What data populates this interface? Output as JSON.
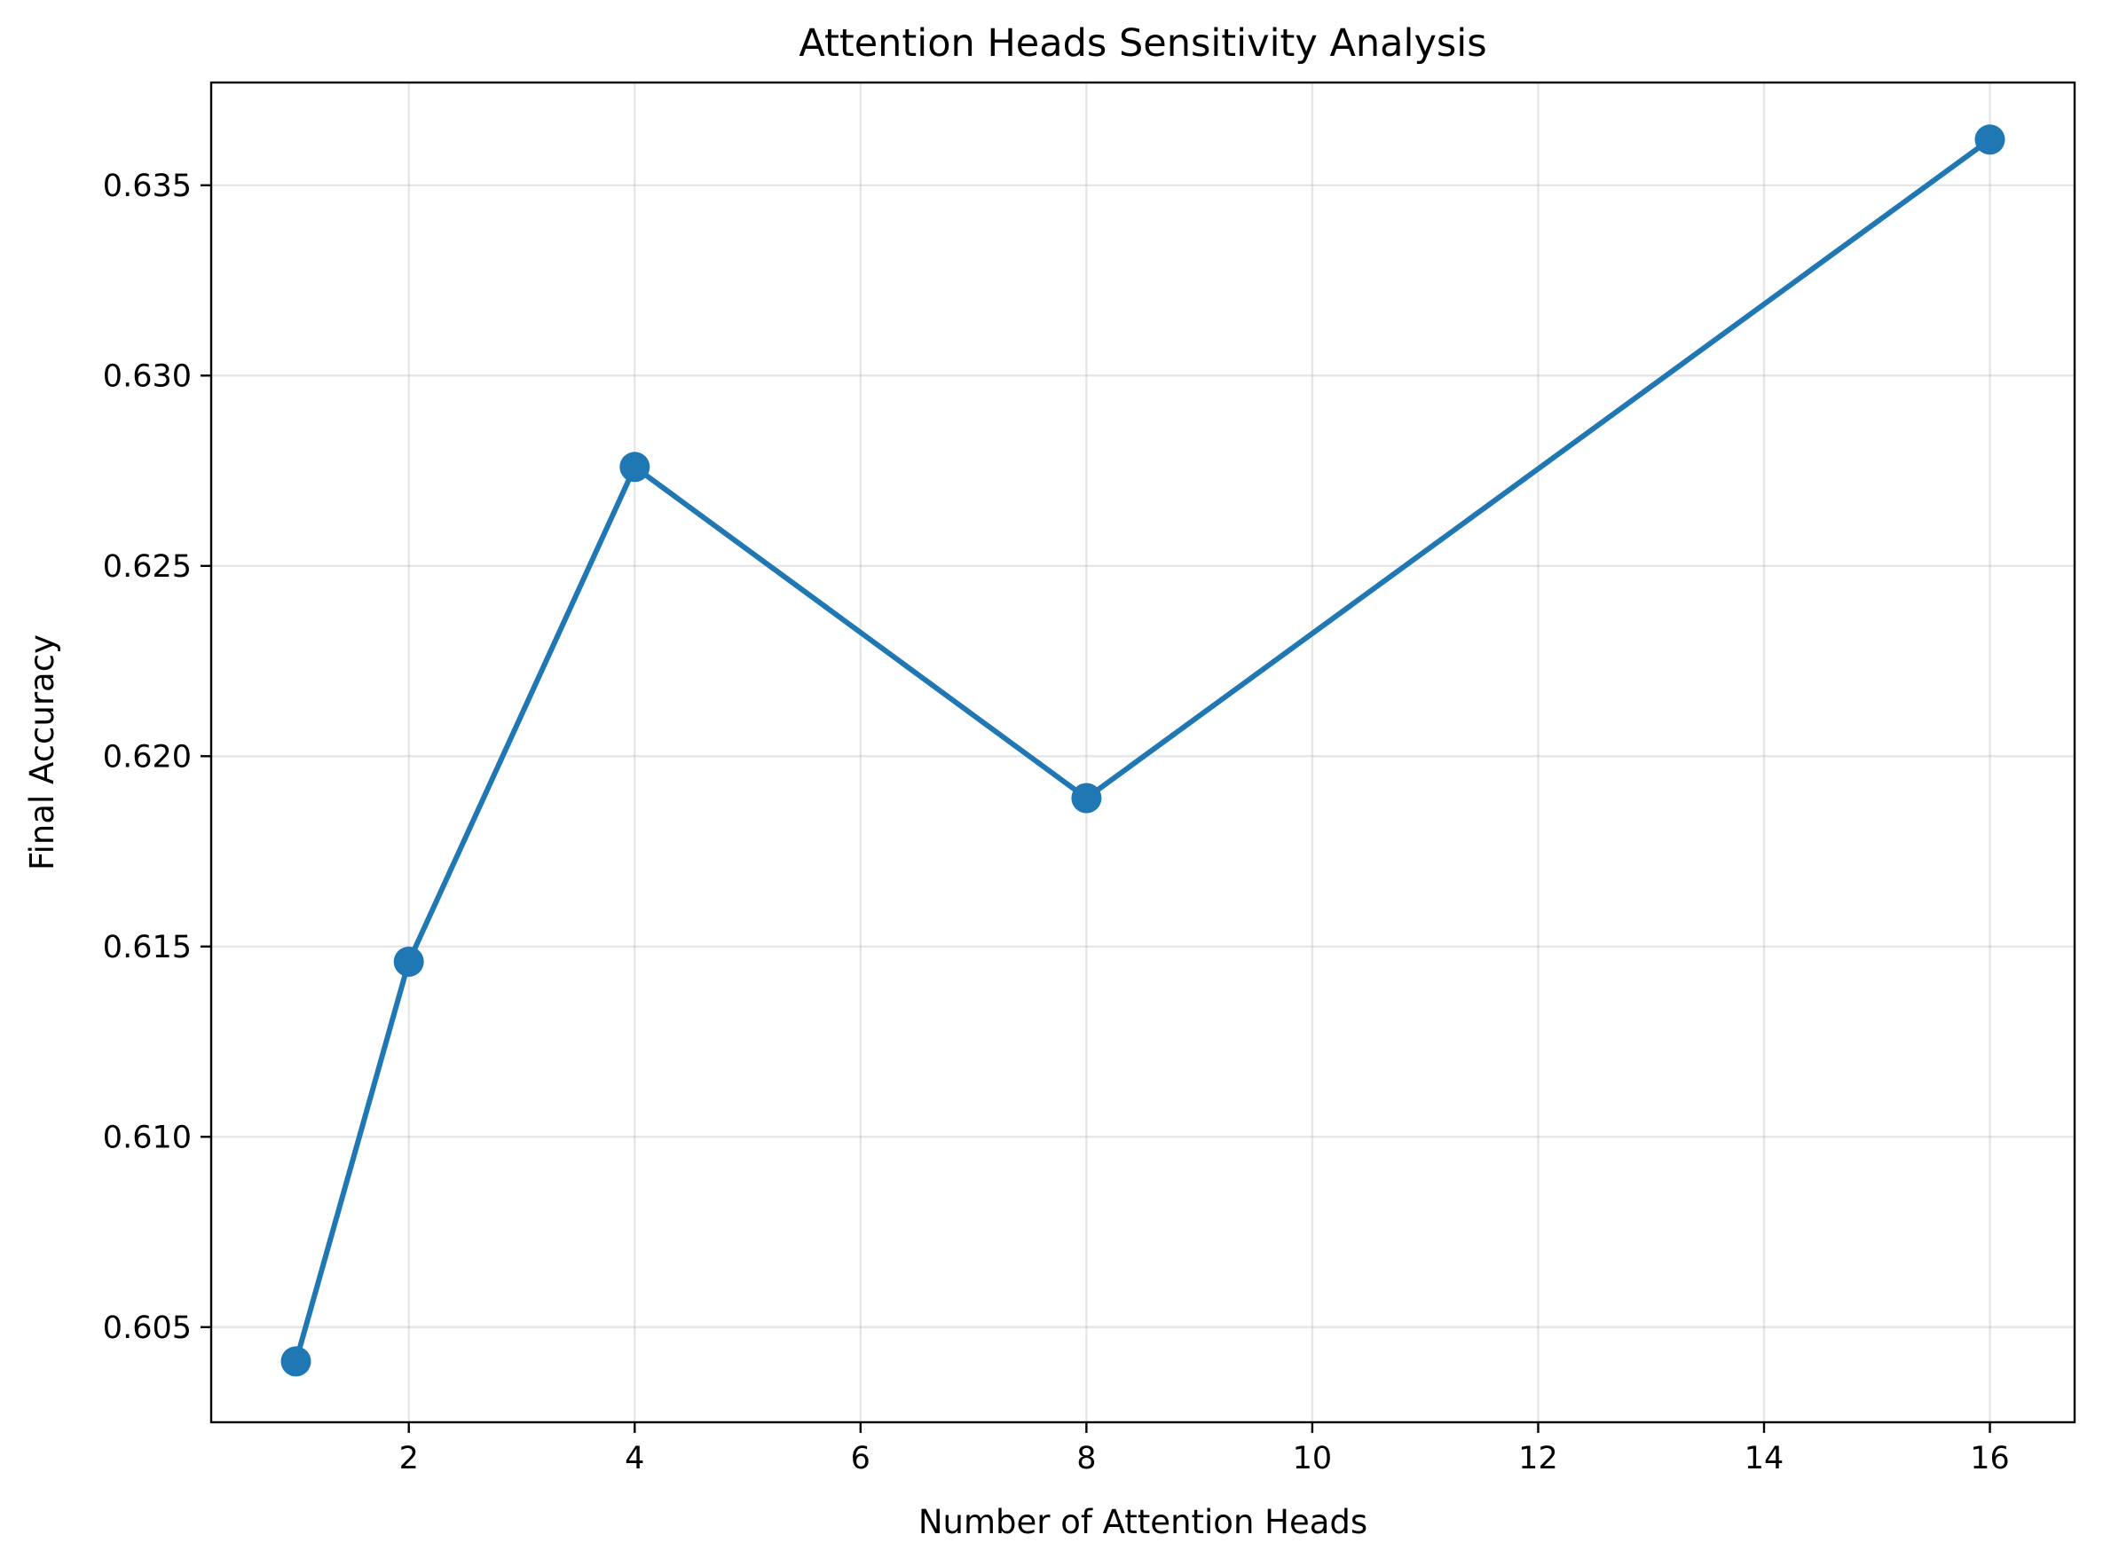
{
  "chart_data": {
    "type": "line",
    "title": "Attention Heads Sensitivity Analysis",
    "xlabel": "Number of Attention Heads",
    "ylabel": "Final Accuracy",
    "x": [
      1,
      2,
      4,
      8,
      16
    ],
    "series": [
      {
        "values": [
          0.6041,
          0.6146,
          0.6276,
          0.6189,
          0.6362
        ]
      }
    ],
    "xlim": [
      0.25,
      16.75
    ],
    "ylim": [
      0.6025,
      0.6377
    ],
    "xticks": [
      2,
      4,
      6,
      8,
      10,
      12,
      14,
      16
    ],
    "xtick_labels": [
      "2",
      "4",
      "6",
      "8",
      "10",
      "12",
      "14",
      "16"
    ],
    "yticks": [
      0.605,
      0.61,
      0.615,
      0.62,
      0.625,
      0.63,
      0.635
    ],
    "ytick_labels": [
      "0.605",
      "0.610",
      "0.615",
      "0.620",
      "0.625",
      "0.630",
      "0.635"
    ],
    "grid": true,
    "legend": "none",
    "colors": {
      "line": "#1f77b4",
      "marker": "#1f77b4",
      "grid": "#b0b0b0",
      "axes": "#000000"
    },
    "marker": "circle"
  }
}
